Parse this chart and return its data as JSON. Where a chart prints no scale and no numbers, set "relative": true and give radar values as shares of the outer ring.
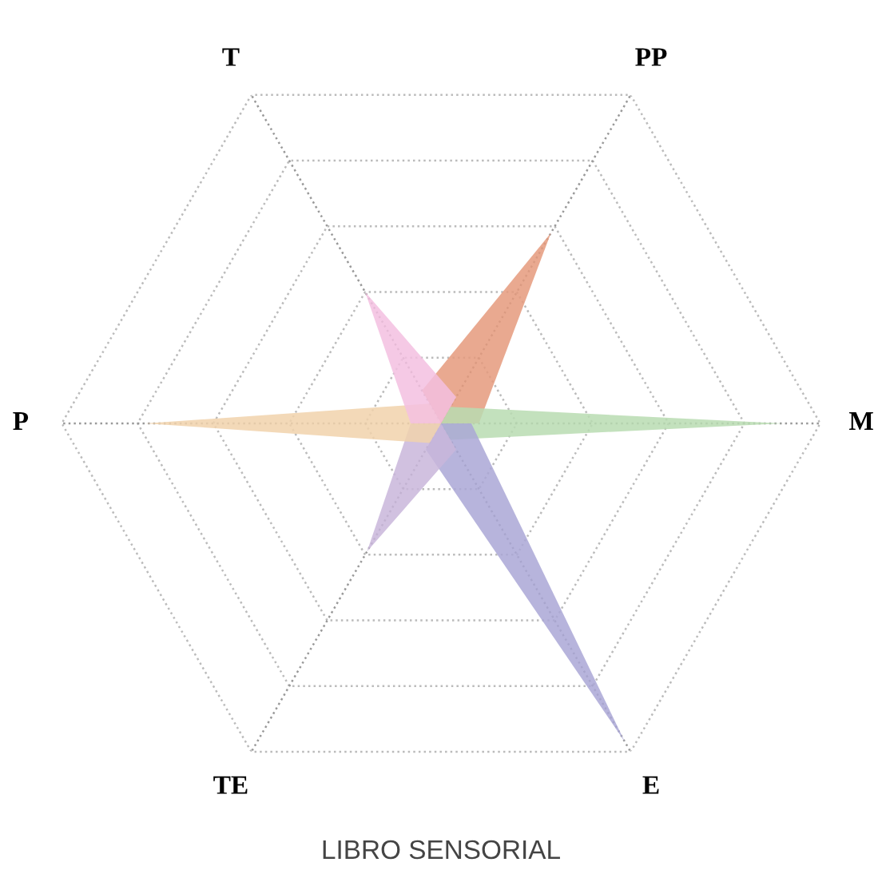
{
  "chart_data": {
    "type": "radar",
    "title": "LIBRO SENSORIAL",
    "relative": true,
    "grid": true,
    "legend": false,
    "categories": [
      "PP",
      "M",
      "E",
      "TE",
      "P",
      "T"
    ],
    "series": [
      {
        "color": "#e59a7c",
        "values": [
          0.58,
          0.1,
          0,
          0,
          0,
          0.1
        ]
      },
      {
        "color": "#b9dcb2",
        "values": [
          0.05,
          0.9,
          0.05,
          0,
          0,
          0
        ]
      },
      {
        "color": "#aaa7d6",
        "values": [
          0,
          0.08,
          0.97,
          0.08,
          0,
          0
        ]
      },
      {
        "color": "#c9b6da",
        "values": [
          0,
          0,
          0.08,
          0.39,
          0.08,
          0
        ]
      },
      {
        "color": "#f1d2ac",
        "values": [
          0,
          0,
          0,
          0.06,
          0.78,
          0.06
        ]
      },
      {
        "color": "#f3c0e0",
        "values": [
          0.08,
          0,
          0,
          0,
          0.08,
          0.4
        ]
      }
    ]
  }
}
